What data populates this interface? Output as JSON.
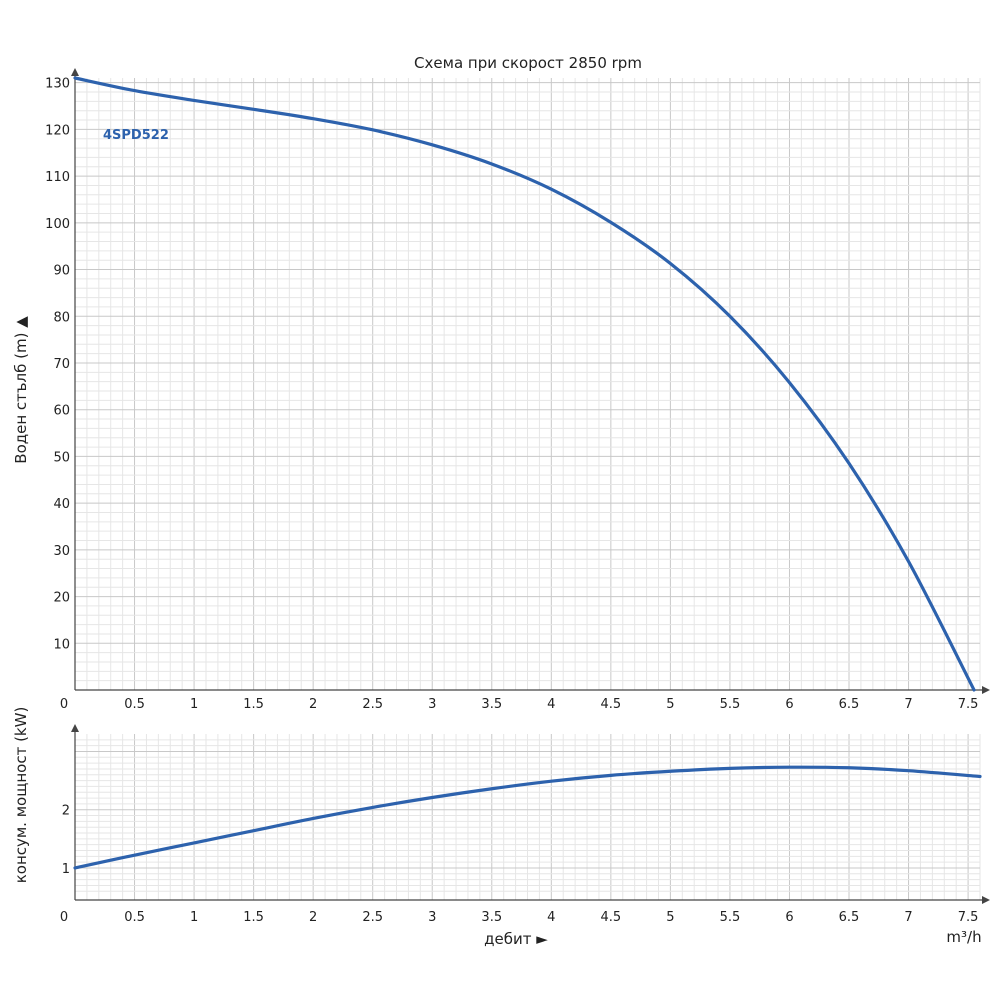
{
  "chart_data": [
    {
      "type": "line",
      "title": "Схема при скорост 2850 rpm",
      "ylabel": "Воден стълб (m) ▲",
      "xlim": [
        0,
        7.6
      ],
      "ylim": [
        0,
        131
      ],
      "x_ticks": [
        "0",
        "0.5",
        "1",
        "1.5",
        "2",
        "2.5",
        "3",
        "3.5",
        "4",
        "4.5",
        "5",
        "5.5",
        "6",
        "6.5",
        "7",
        "7.5"
      ],
      "y_ticks": [
        "10",
        "20",
        "30",
        "40",
        "50",
        "60",
        "70",
        "80",
        "90",
        "100",
        "110",
        "120",
        "130"
      ],
      "grid": true,
      "color": "#2d62ad",
      "series": [
        {
          "name": "4SPD522",
          "x": [
            0,
            0.5,
            1,
            1.5,
            2,
            2.5,
            3,
            3.5,
            4,
            4.5,
            5,
            5.5,
            6,
            6.5,
            7,
            7.55
          ],
          "y": [
            131,
            128.3,
            126.2,
            124.3,
            122.3,
            119.9,
            116.7,
            112.6,
            107.2,
            100.1,
            91.3,
            80,
            65.8,
            48.5,
            27.5,
            0
          ]
        }
      ]
    },
    {
      "type": "line",
      "ylabel": "консум. мощност (kW)",
      "xlabel": "дебит ►",
      "xunit": "m³/h",
      "xlim": [
        0,
        7.6
      ],
      "ylim": [
        0.45,
        3.3
      ],
      "x_ticks": [
        "0",
        "0.5",
        "1",
        "1.5",
        "2",
        "2.5",
        "3",
        "3.5",
        "4",
        "4.5",
        "5",
        "5.5",
        "6",
        "6.5",
        "7",
        "7.5"
      ],
      "y_ticks": [
        "1",
        "2"
      ],
      "grid": true,
      "color": "#2d62ad",
      "series": [
        {
          "x": [
            0,
            0.5,
            1,
            1.5,
            2,
            2.5,
            3,
            3.5,
            4,
            4.5,
            5,
            5.5,
            6,
            6.5,
            7,
            7.6
          ],
          "y": [
            1.0,
            1.22,
            1.43,
            1.64,
            1.85,
            2.04,
            2.21,
            2.36,
            2.49,
            2.59,
            2.66,
            2.71,
            2.73,
            2.72,
            2.67,
            2.57
          ]
        }
      ]
    }
  ]
}
